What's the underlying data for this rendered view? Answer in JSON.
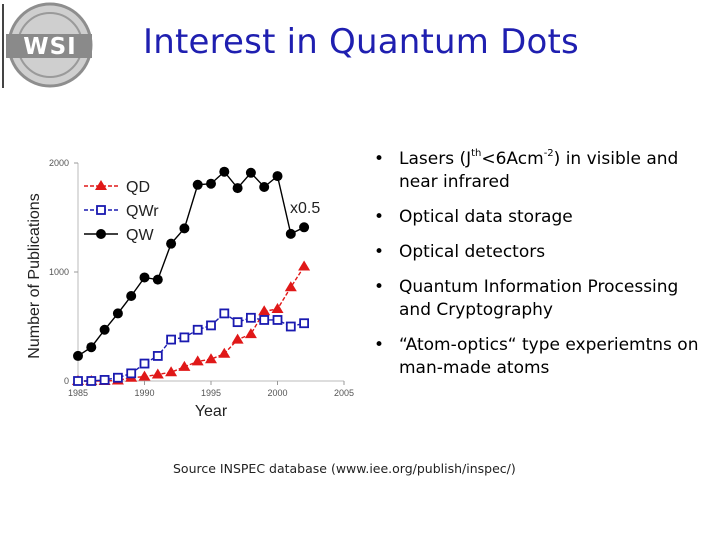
{
  "slide": {
    "title": "Interest in Quantum Dots",
    "logo_text": "WSI",
    "bullets": [
      {
        "parts": [
          "Lasers (J",
          "th",
          "<6Acm",
          "-2",
          ") in visible and near infrared"
        ]
      },
      {
        "text": "Optical data storage"
      },
      {
        "text": "Optical detectors"
      },
      {
        "text": "Quantum Information Processing and Cryptography"
      },
      {
        "text": "“Atom-optics“ type experiemtns on man-made atoms"
      }
    ],
    "bullet_glyph": "•",
    "source": "Source INSPEC database (www.iee.org/publish/inspec/)"
  },
  "chart_data": {
    "type": "line",
    "xlabel": "Year",
    "ylabel": "Number of Publications",
    "xlim": [
      1985,
      2005
    ],
    "ylim": [
      0,
      2000
    ],
    "xticks": [
      1985,
      1990,
      1995,
      2000,
      2005
    ],
    "yticks": [
      0,
      1000,
      2000
    ],
    "legend_position": "top-left",
    "annotation": "x0.5",
    "series": [
      {
        "name": "QD",
        "color": "#e01818",
        "marker": "triangle-filled",
        "x": [
          1985,
          1986,
          1987,
          1988,
          1989,
          1990,
          1991,
          1992,
          1993,
          1994,
          1995,
          1996,
          1997,
          1998,
          1999,
          2000,
          2001,
          2002
        ],
        "y": [
          0,
          0,
          0,
          5,
          30,
          40,
          60,
          80,
          130,
          180,
          200,
          250,
          380,
          430,
          640,
          660,
          860,
          1050
        ]
      },
      {
        "name": "QWr",
        "color": "#1a1ab0",
        "marker": "square-open",
        "x": [
          1985,
          1986,
          1987,
          1988,
          1989,
          1990,
          1991,
          1992,
          1993,
          1994,
          1995,
          1996,
          1997,
          1998,
          1999,
          2000,
          2001,
          2002
        ],
        "y": [
          0,
          0,
          10,
          30,
          70,
          160,
          230,
          380,
          400,
          470,
          510,
          620,
          540,
          580,
          560,
          560,
          500,
          530
        ]
      },
      {
        "name": "QW",
        "color": "#000000",
        "marker": "circle-filled",
        "x": [
          1985,
          1986,
          1987,
          1988,
          1989,
          1990,
          1991,
          1992,
          1993,
          1994,
          1995,
          1996,
          1997,
          1998,
          1999,
          2000,
          2001,
          2002
        ],
        "y": [
          230,
          310,
          470,
          620,
          780,
          950,
          930,
          1260,
          1400,
          1800,
          1810,
          1920,
          1770,
          1910,
          1780,
          1880,
          1350,
          1410
        ]
      }
    ]
  }
}
